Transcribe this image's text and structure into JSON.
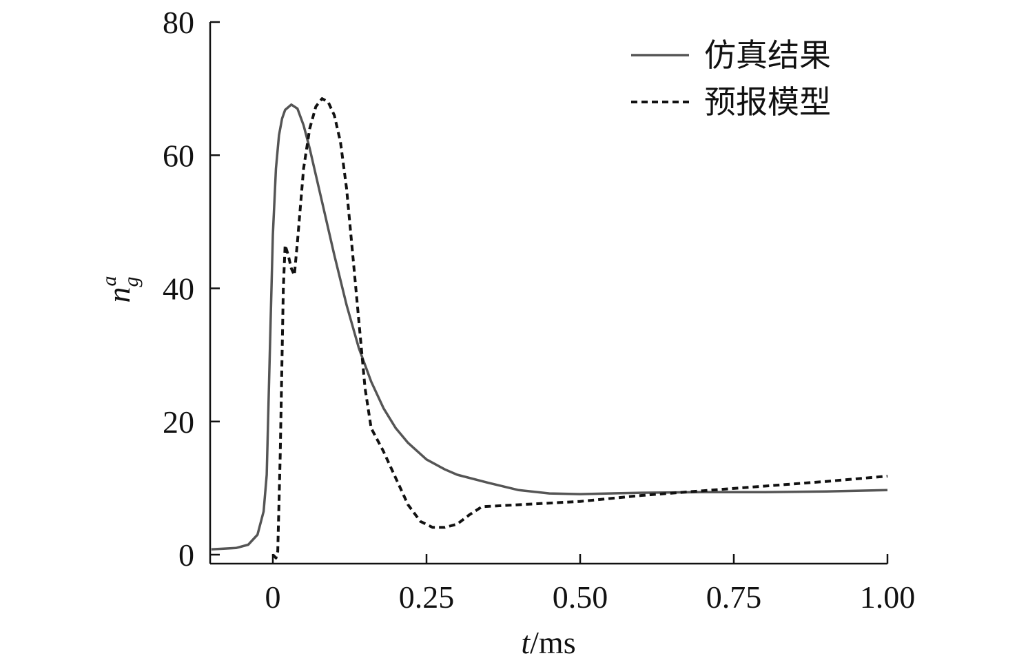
{
  "chart_data": {
    "type": "line",
    "xlabel": {
      "var": "t",
      "unit": "/ms"
    },
    "ylabel": {
      "base": "n",
      "sup": "a",
      "sub": "g"
    },
    "xlim": [
      -0.1,
      1.0
    ],
    "ylim": [
      -1,
      80
    ],
    "x_ticks": [
      0,
      0.25,
      0.5,
      0.75,
      1.0
    ],
    "x_tick_labels": [
      "0",
      "0.25",
      "0.50",
      "0.75",
      "1.00"
    ],
    "y_ticks": [
      0,
      20,
      40,
      60,
      80
    ],
    "y_tick_labels": [
      "0",
      "20",
      "40",
      "60",
      "80"
    ],
    "grid": false,
    "legend_position": "top-right",
    "series": [
      {
        "name": "仿真结果",
        "style": "solid",
        "color": "#555555",
        "points": [
          [
            -0.1,
            0.8
          ],
          [
            -0.06,
            1.0
          ],
          [
            -0.04,
            1.5
          ],
          [
            -0.025,
            3.0
          ],
          [
            -0.015,
            6.5
          ],
          [
            -0.01,
            12
          ],
          [
            -0.005,
            30
          ],
          [
            0.0,
            48
          ],
          [
            0.005,
            58
          ],
          [
            0.01,
            63
          ],
          [
            0.015,
            65.5
          ],
          [
            0.02,
            66.8
          ],
          [
            0.03,
            67.6
          ],
          [
            0.04,
            67.0
          ],
          [
            0.05,
            64.5
          ],
          [
            0.06,
            61.0
          ],
          [
            0.08,
            53.0
          ],
          [
            0.1,
            45.0
          ],
          [
            0.12,
            37.5
          ],
          [
            0.14,
            31.0
          ],
          [
            0.16,
            26.0
          ],
          [
            0.18,
            22.0
          ],
          [
            0.2,
            19.0
          ],
          [
            0.22,
            16.8
          ],
          [
            0.25,
            14.3
          ],
          [
            0.28,
            12.8
          ],
          [
            0.3,
            12.0
          ],
          [
            0.35,
            10.8
          ],
          [
            0.4,
            9.7
          ],
          [
            0.45,
            9.2
          ],
          [
            0.5,
            9.1
          ],
          [
            0.6,
            9.3
          ],
          [
            0.7,
            9.4
          ],
          [
            0.8,
            9.4
          ],
          [
            0.9,
            9.5
          ],
          [
            1.0,
            9.7
          ]
        ]
      },
      {
        "name": "预报模型",
        "style": "dashed",
        "color": "#111111",
        "points": [
          [
            0.0,
            0.0
          ],
          [
            0.005,
            -0.5
          ],
          [
            0.008,
            0.5
          ],
          [
            0.012,
            15
          ],
          [
            0.017,
            40
          ],
          [
            0.02,
            46.5
          ],
          [
            0.025,
            45
          ],
          [
            0.03,
            43
          ],
          [
            0.035,
            42
          ],
          [
            0.04,
            47
          ],
          [
            0.05,
            58
          ],
          [
            0.06,
            64
          ],
          [
            0.07,
            67.3
          ],
          [
            0.08,
            68.5
          ],
          [
            0.09,
            68.0
          ],
          [
            0.1,
            66.0
          ],
          [
            0.11,
            62.0
          ],
          [
            0.12,
            55.0
          ],
          [
            0.13,
            45.0
          ],
          [
            0.14,
            35.0
          ],
          [
            0.15,
            25.0
          ],
          [
            0.16,
            19.0
          ],
          [
            0.18,
            15.5
          ],
          [
            0.2,
            11.5
          ],
          [
            0.22,
            7.5
          ],
          [
            0.24,
            5.0
          ],
          [
            0.26,
            4.1
          ],
          [
            0.28,
            4.1
          ],
          [
            0.3,
            4.6
          ],
          [
            0.32,
            6.0
          ],
          [
            0.34,
            7.2
          ],
          [
            0.4,
            7.5
          ],
          [
            0.5,
            8.0
          ],
          [
            0.6,
            8.9
          ],
          [
            0.7,
            9.6
          ],
          [
            0.8,
            10.3
          ],
          [
            0.9,
            11.0
          ],
          [
            1.0,
            11.8
          ]
        ]
      }
    ]
  }
}
